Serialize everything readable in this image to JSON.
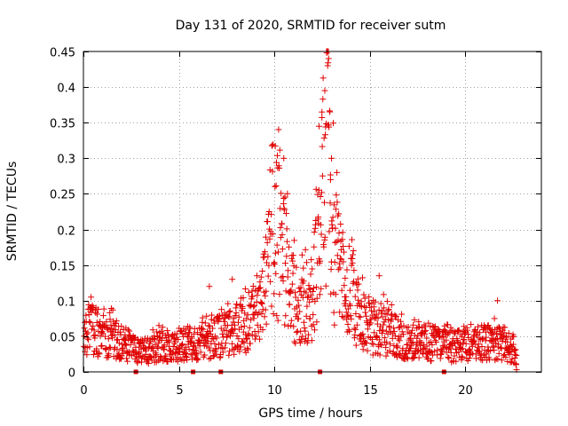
{
  "chart_data": {
    "type": "scatter",
    "title": "Day 131 of 2020, SRMTID for receiver sutm",
    "xlabel": "GPS time / hours",
    "ylabel": "SRMTID / TECUs",
    "xlim": [
      0,
      24
    ],
    "ylim": [
      0,
      0.45
    ],
    "x_ticks": [
      0,
      5,
      10,
      15,
      20
    ],
    "y_ticks": [
      0,
      0.05,
      0.1,
      0.15,
      0.2,
      0.25,
      0.3,
      0.35,
      0.4,
      0.45
    ],
    "x_tick_labels": [
      "0",
      "5",
      "10",
      "15",
      "20"
    ],
    "y_tick_labels": [
      "0",
      "0.05",
      "0.1",
      "0.15",
      "0.2",
      "0.25",
      "0.3",
      "0.35",
      "0.4",
      "0.45"
    ],
    "grid": true,
    "marker": "+",
    "color": "#e00000",
    "baseline_markers_x": [
      2.75,
      5.75,
      7.2,
      12.4,
      18.9
    ],
    "series": [
      {
        "name": "SRMTID",
        "envelope": [
          {
            "x": 0.0,
            "y": 0.06
          },
          {
            "x": 0.5,
            "y": 0.08
          },
          {
            "x": 1.0,
            "y": 0.06
          },
          {
            "x": 1.5,
            "y": 0.06
          },
          {
            "x": 2.0,
            "y": 0.05
          },
          {
            "x": 2.5,
            "y": 0.04
          },
          {
            "x": 3.0,
            "y": 0.035
          },
          {
            "x": 3.5,
            "y": 0.04
          },
          {
            "x": 4.0,
            "y": 0.045
          },
          {
            "x": 4.5,
            "y": 0.04
          },
          {
            "x": 5.0,
            "y": 0.045
          },
          {
            "x": 5.5,
            "y": 0.05
          },
          {
            "x": 6.0,
            "y": 0.05
          },
          {
            "x": 6.5,
            "y": 0.055
          },
          {
            "x": 7.0,
            "y": 0.06
          },
          {
            "x": 7.5,
            "y": 0.065
          },
          {
            "x": 8.0,
            "y": 0.075
          },
          {
            "x": 8.5,
            "y": 0.085
          },
          {
            "x": 9.0,
            "y": 0.09
          },
          {
            "x": 9.3,
            "y": 0.11
          },
          {
            "x": 9.6,
            "y": 0.16
          },
          {
            "x": 9.9,
            "y": 0.22
          },
          {
            "x": 10.2,
            "y": 0.24
          },
          {
            "x": 10.5,
            "y": 0.2
          },
          {
            "x": 10.8,
            "y": 0.15
          },
          {
            "x": 11.1,
            "y": 0.12
          },
          {
            "x": 11.4,
            "y": 0.11
          },
          {
            "x": 11.7,
            "y": 0.12
          },
          {
            "x": 12.0,
            "y": 0.14
          },
          {
            "x": 12.3,
            "y": 0.2
          },
          {
            "x": 12.6,
            "y": 0.34
          },
          {
            "x": 12.75,
            "y": 0.42
          },
          {
            "x": 12.9,
            "y": 0.3
          },
          {
            "x": 13.2,
            "y": 0.2
          },
          {
            "x": 13.5,
            "y": 0.17
          },
          {
            "x": 14.0,
            "y": 0.13
          },
          {
            "x": 14.5,
            "y": 0.1
          },
          {
            "x": 15.0,
            "y": 0.08
          },
          {
            "x": 15.5,
            "y": 0.075
          },
          {
            "x": 16.0,
            "y": 0.07
          },
          {
            "x": 16.5,
            "y": 0.06
          },
          {
            "x": 17.0,
            "y": 0.055
          },
          {
            "x": 17.5,
            "y": 0.05
          },
          {
            "x": 18.0,
            "y": 0.05
          },
          {
            "x": 18.5,
            "y": 0.05
          },
          {
            "x": 19.0,
            "y": 0.045
          },
          {
            "x": 19.5,
            "y": 0.045
          },
          {
            "x": 20.0,
            "y": 0.045
          },
          {
            "x": 20.5,
            "y": 0.05
          },
          {
            "x": 21.0,
            "y": 0.05
          },
          {
            "x": 21.5,
            "y": 0.05
          },
          {
            "x": 22.0,
            "y": 0.05
          },
          {
            "x": 22.5,
            "y": 0.04
          },
          {
            "x": 22.7,
            "y": 0.02
          }
        ],
        "notable_points": [
          {
            "x": 10.5,
            "y": 0.3
          },
          {
            "x": 12.35,
            "y": 0.345
          },
          {
            "x": 12.5,
            "y": 0.365
          },
          {
            "x": 12.65,
            "y": 0.395
          },
          {
            "x": 12.75,
            "y": 0.448
          },
          {
            "x": 12.85,
            "y": 0.44
          },
          {
            "x": 12.8,
            "y": 0.43
          },
          {
            "x": 13.0,
            "y": 0.3
          },
          {
            "x": 12.95,
            "y": 0.27
          },
          {
            "x": 0.4,
            "y": 0.105
          },
          {
            "x": 6.6,
            "y": 0.12
          },
          {
            "x": 7.8,
            "y": 0.13
          },
          {
            "x": 15.5,
            "y": 0.135
          },
          {
            "x": 21.7,
            "y": 0.1
          },
          {
            "x": 22.7,
            "y": 0.003
          }
        ]
      }
    ]
  }
}
